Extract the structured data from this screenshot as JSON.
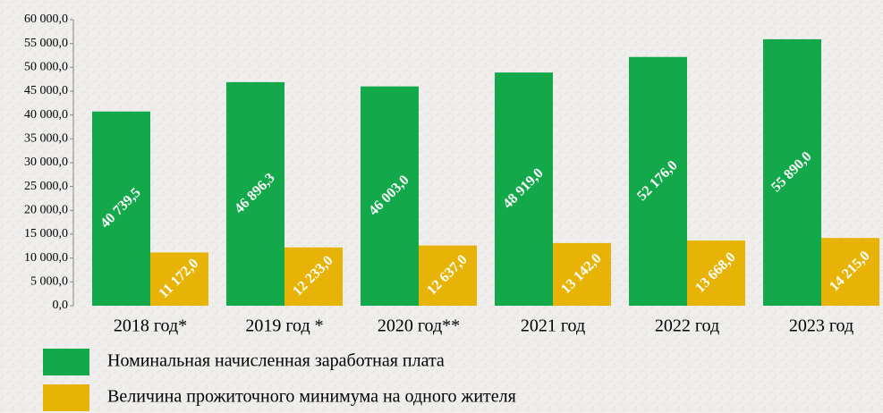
{
  "chart_data": {
    "type": "bar",
    "categories": [
      "2018 год*",
      "2019 год *",
      "2020 год**",
      "2021 год",
      "2022 год",
      "2023 год"
    ],
    "series": [
      {
        "name": "Номинальная начисленная заработная плата",
        "color": "#13a84a",
        "values": [
          40739.5,
          46896.3,
          46003.0,
          48919.0,
          52176.0,
          55890.0
        ],
        "value_labels": [
          "40 739,5",
          "46 896,3",
          "46 003,0",
          "48 919,0",
          "52 176,0",
          "55 890,0"
        ]
      },
      {
        "name": "Величина прожиточного минимума на одного жителя",
        "color": "#e8b307",
        "values": [
          11172.0,
          12233.0,
          12637.0,
          13142.0,
          13668.0,
          14215.0
        ],
        "value_labels": [
          "11 172,0",
          "12 233,0",
          "12 637,0",
          "13 142,0",
          "13 668,0",
          "14 215,0"
        ]
      }
    ],
    "ylim": [
      0,
      60000
    ],
    "yticks": [
      {
        "value": 0,
        "label": "0,0"
      },
      {
        "value": 5000,
        "label": "5 000,0"
      },
      {
        "value": 10000,
        "label": "10 000,0"
      },
      {
        "value": 15000,
        "label": "15 000,0"
      },
      {
        "value": 20000,
        "label": "20 000,0"
      },
      {
        "value": 25000,
        "label": "25 000,0"
      },
      {
        "value": 30000,
        "label": "30 000,0"
      },
      {
        "value": 35000,
        "label": "35 000,0"
      },
      {
        "value": 40000,
        "label": "40 000,0"
      },
      {
        "value": 45000,
        "label": "45 000,0"
      },
      {
        "value": 50000,
        "label": "50 000,0"
      },
      {
        "value": 55000,
        "label": "55 000,0"
      },
      {
        "value": 60000,
        "label": "60 000,0"
      }
    ],
    "grid": false
  }
}
